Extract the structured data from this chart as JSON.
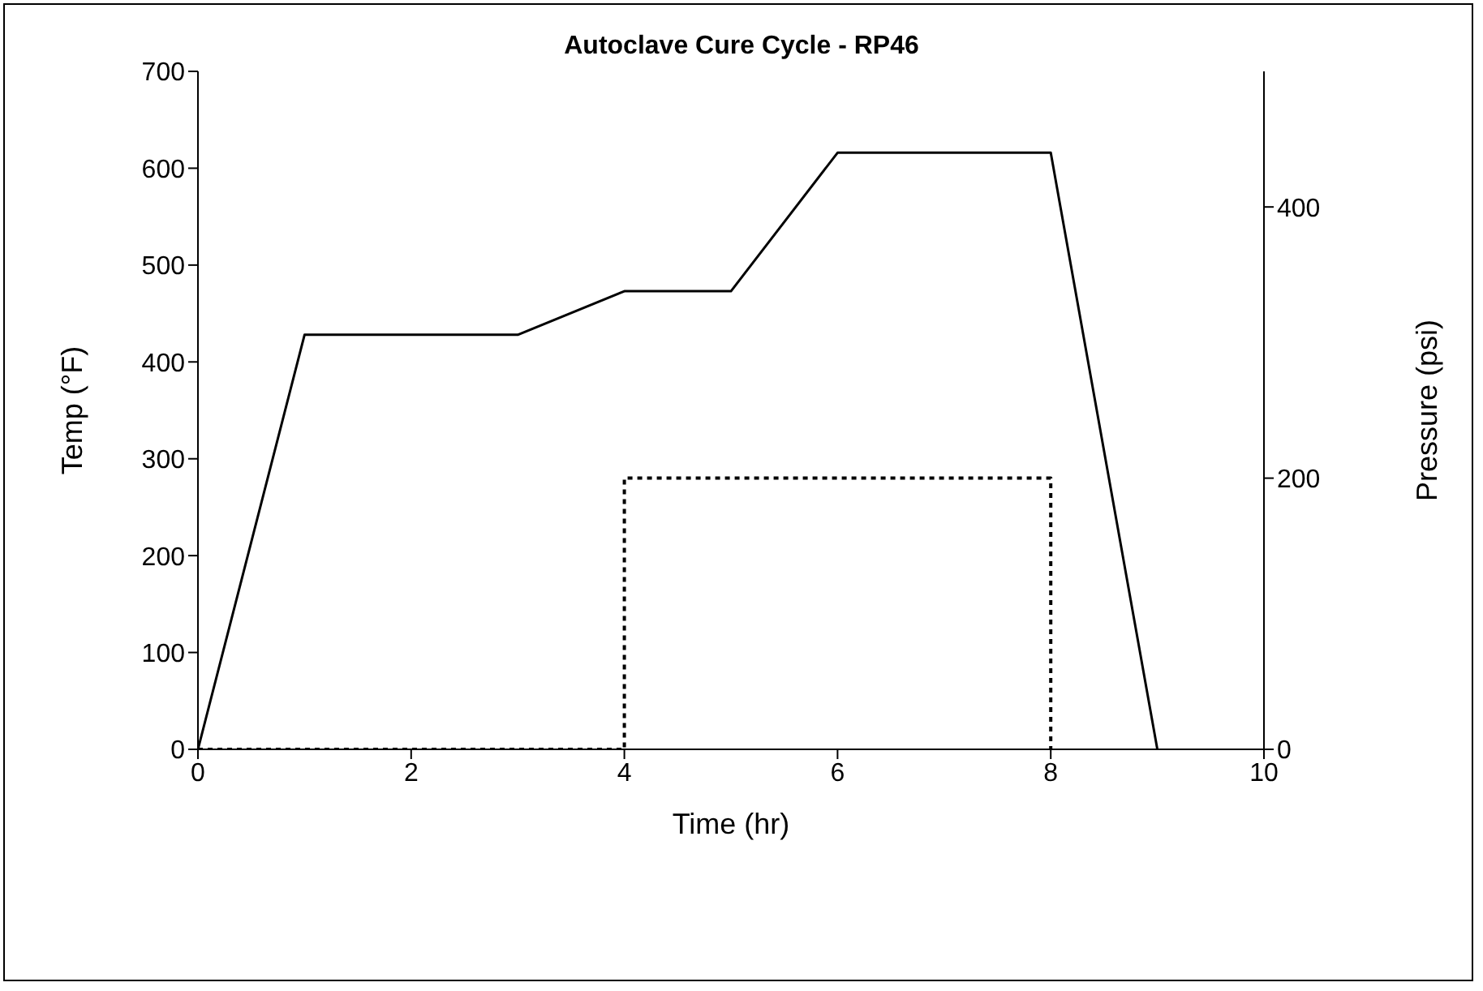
{
  "chart_data": {
    "type": "line",
    "title": "Autoclave Cure Cycle - RP46",
    "xlabel": "Time (hr)",
    "ylabel": "Temp (°F)",
    "y2label": "Pressure (psi)",
    "xlim": [
      0,
      10
    ],
    "xticks": [
      0,
      2,
      4,
      6,
      8,
      10
    ],
    "ylim": [
      0,
      700
    ],
    "yticks": [
      0,
      100,
      200,
      300,
      400,
      500,
      600,
      700
    ],
    "y2lim": [
      0,
      500
    ],
    "y2ticks": [
      0,
      200,
      400
    ],
    "series": [
      {
        "color": "#000000",
        "x": [
          0,
          1,
          3,
          4,
          5,
          6,
          8,
          9
        ],
        "values": [
          0,
          428,
          428,
          473,
          473,
          616,
          616,
          0
        ],
        "line_style": "solid"
      },
      {
        "color": "#000000",
        "x": [
          0,
          4,
          4,
          8,
          8
        ],
        "values": [
          0,
          0,
          200,
          200,
          0
        ],
        "axis": "y2",
        "line_style": "dotted"
      }
    ]
  }
}
